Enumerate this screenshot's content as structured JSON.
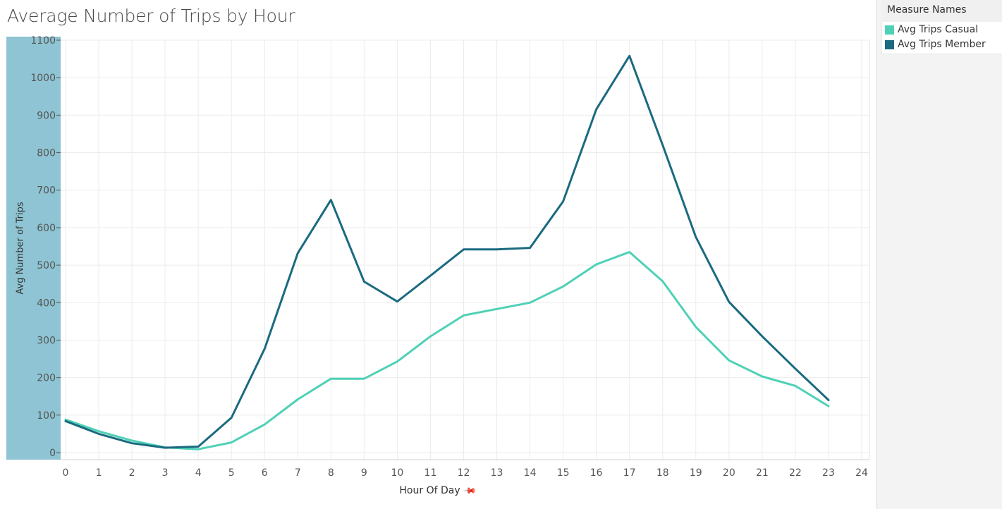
{
  "title": "Average Number of Trips by Hour",
  "legend": {
    "title": "Measure Names",
    "items": [
      {
        "label": "Avg Trips Casual",
        "color": "#4fd1b6"
      },
      {
        "label": "Avg Trips Member",
        "color": "#1b6a80"
      }
    ]
  },
  "colors": {
    "axis_panel": "#8ec4d3",
    "grid": "#ececec"
  },
  "chart_data": {
    "type": "line",
    "title": "Average Number of Trips by Hour",
    "xlabel": "Hour Of Day",
    "ylabel": "Avg Number of Trips",
    "xlim": [
      0,
      24
    ],
    "ylim": [
      0,
      1100
    ],
    "x_ticks": [
      0,
      1,
      2,
      3,
      4,
      5,
      6,
      7,
      8,
      9,
      10,
      11,
      12,
      13,
      14,
      15,
      16,
      17,
      18,
      19,
      20,
      21,
      22,
      23,
      24
    ],
    "y_ticks": [
      0,
      100,
      200,
      300,
      400,
      500,
      600,
      700,
      800,
      900,
      1000,
      1100
    ],
    "grid": true,
    "legend_position": "top-right",
    "x": [
      0,
      1,
      2,
      3,
      4,
      5,
      6,
      7,
      8,
      9,
      10,
      11,
      12,
      13,
      14,
      15,
      16,
      17,
      18,
      19,
      20,
      21,
      22,
      23
    ],
    "series": [
      {
        "name": "Avg Trips Casual",
        "values": [
          88,
          57,
          32,
          14,
          9,
          27,
          75,
          142,
          197,
          197,
          243,
          310,
          366,
          383,
          400,
          443,
          502,
          535,
          457,
          335,
          246,
          203,
          178,
          124
        ]
      },
      {
        "name": "Avg Trips Member",
        "values": [
          84,
          50,
          25,
          13,
          16,
          93,
          277,
          532,
          674,
          456,
          403,
          472,
          542,
          542,
          546,
          670,
          916,
          1058,
          820,
          575,
          402,
          310,
          224,
          140
        ]
      }
    ]
  }
}
